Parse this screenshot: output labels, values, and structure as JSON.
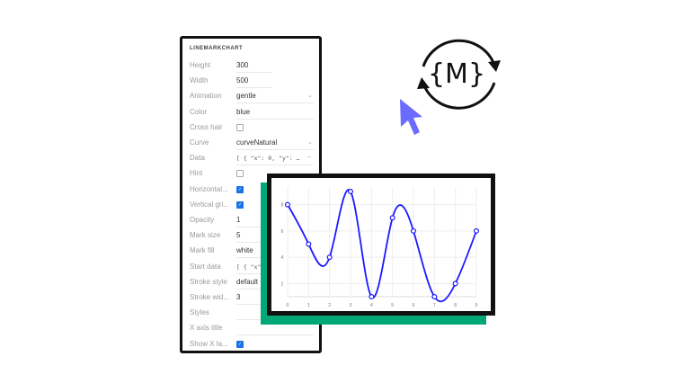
{
  "panel": {
    "title": "LINEMARKCHART",
    "rows": [
      {
        "label": "Height",
        "value": "300",
        "kind": "text"
      },
      {
        "label": "Width",
        "value": "500",
        "kind": "text"
      },
      {
        "label": "Animation",
        "value": "gentle",
        "kind": "select"
      },
      {
        "label": "Color",
        "value": "blue",
        "kind": "textwide"
      },
      {
        "label": "Cross hair",
        "checked": false,
        "kind": "check"
      },
      {
        "label": "Curve",
        "value": "curveNatural",
        "kind": "select"
      },
      {
        "label": "Data",
        "value": "[ { \"x\": 0, \"y\": …",
        "kind": "mono"
      },
      {
        "label": "Hint",
        "checked": false,
        "kind": "check"
      },
      {
        "label": "Horizontal...",
        "checked": true,
        "kind": "check"
      },
      {
        "label": "Vertical gri...",
        "checked": true,
        "kind": "check"
      },
      {
        "label": "Opacity",
        "value": "1",
        "kind": "text"
      },
      {
        "label": "Mark size",
        "value": "5",
        "kind": "text"
      },
      {
        "label": "Mark fill",
        "value": "white",
        "kind": "text"
      },
      {
        "label": "Start data",
        "value": "[ { \"x\":",
        "kind": "mono"
      },
      {
        "label": "Stroke style",
        "value": "default",
        "kind": "text"
      },
      {
        "label": "Stroke wid...",
        "value": "3",
        "kind": "text"
      },
      {
        "label": "Styles",
        "value": "",
        "kind": "textwide"
      },
      {
        "label": "X axis title",
        "value": "",
        "kind": "textwide"
      },
      {
        "label": "Show X la...",
        "checked": true,
        "kind": "check"
      }
    ]
  },
  "logo": {
    "text": "{M}"
  },
  "colors": {
    "accent_green": "#00a878",
    "line": "#1a1aff",
    "cursor": "#6b6bff",
    "checkbox": "#1a73e8"
  },
  "icons": {
    "cursor": "cursor-arrow-icon",
    "logo": "sync-arrows-icon",
    "chevron": "chevron-down-icon"
  },
  "chart_data": {
    "type": "line",
    "curve": "natural",
    "x": [
      0,
      1,
      2,
      3,
      4,
      5,
      6,
      7,
      8,
      9
    ],
    "y": [
      8,
      5,
      4,
      9,
      1,
      7,
      6,
      1,
      2,
      6
    ],
    "xticks": [
      "0",
      "1",
      "2",
      "3",
      "4",
      "5",
      "6",
      "7",
      "8",
      "9"
    ],
    "yticks": [
      "2",
      "4",
      "6",
      "8"
    ],
    "xlim": [
      0,
      9
    ],
    "ylim": [
      1,
      9
    ],
    "grid": true,
    "color": "#1a1aff",
    "mark_fill": "white"
  }
}
